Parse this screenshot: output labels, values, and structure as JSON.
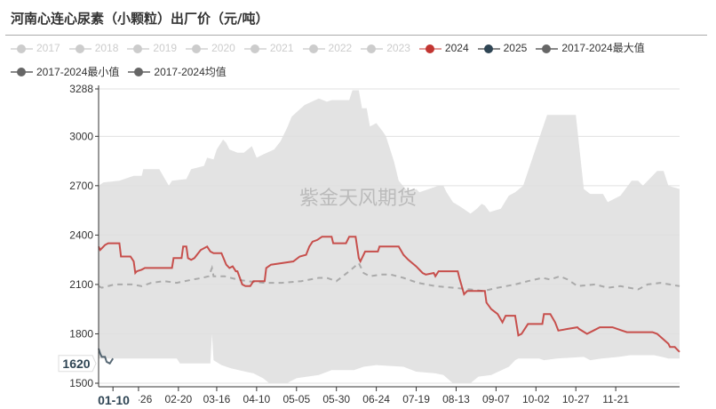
{
  "title": "河南心连心尿素（小颗粒）出厂价（元/吨）",
  "watermark": "紫金天风期货",
  "legend": [
    {
      "label": "2017",
      "color": "#cccccc",
      "active": false
    },
    {
      "label": "2018",
      "color": "#cccccc",
      "active": false
    },
    {
      "label": "2019",
      "color": "#cccccc",
      "active": false
    },
    {
      "label": "2020",
      "color": "#cccccc",
      "active": false
    },
    {
      "label": "2021",
      "color": "#cccccc",
      "active": false
    },
    {
      "label": "2022",
      "color": "#cccccc",
      "active": false
    },
    {
      "label": "2023",
      "color": "#cccccc",
      "active": false
    },
    {
      "label": "2024",
      "color": "#c23531",
      "active": true
    },
    {
      "label": "2025",
      "color": "#2f4554",
      "active": true
    },
    {
      "label": "2017-2024最大值",
      "color": "#666666",
      "active": true
    },
    {
      "label": "2017-2024最小值",
      "color": "#666666",
      "active": true
    },
    {
      "label": "2017-2024均值",
      "color": "#666666",
      "active": true
    }
  ],
  "chart_data": {
    "type": "line",
    "title": "河南心连心尿素（小颗粒）出厂价（元/吨）",
    "ylim": [
      1500,
      3288
    ],
    "yticks": [
      "3288",
      "3000",
      "2700",
      "2400",
      "2100",
      "1800",
      "1500"
    ],
    "xticks": [
      "01-10",
      "01-26",
      "02-20",
      "03-16",
      "04-10",
      "05-05",
      "05-30",
      "06-24",
      "07-19",
      "08-13",
      "09-07",
      "10-02",
      "10-27",
      "11-21"
    ],
    "grid": true,
    "legend_position": "top",
    "axis_pointer": {
      "x": "01-10",
      "y": "1620"
    },
    "band_color": "#e3e3e3",
    "series": [
      {
        "name": "2017-2024最大值",
        "color": "#e3e3e3",
        "points": [
          [
            "01-01",
            2700
          ],
          [
            "01-04",
            2720
          ],
          [
            "01-14",
            2730
          ],
          [
            "01-23",
            2760
          ],
          [
            "01-28",
            2760
          ],
          [
            "01-29",
            2800
          ],
          [
            "02-08",
            2800
          ],
          [
            "02-11",
            2750
          ],
          [
            "02-14",
            2700
          ],
          [
            "02-16",
            2730
          ],
          [
            "02-25",
            2740
          ],
          [
            "02-28",
            2800
          ],
          [
            "03-08",
            2820
          ],
          [
            "03-10",
            2870
          ],
          [
            "03-14",
            2860
          ],
          [
            "03-16",
            2920
          ],
          [
            "03-20",
            2980
          ],
          [
            "03-22",
            2960
          ],
          [
            "03-24",
            2920
          ],
          [
            "03-29",
            2900
          ],
          [
            "04-02",
            2900
          ],
          [
            "04-07",
            2940
          ],
          [
            "04-10",
            2870
          ],
          [
            "04-14",
            2890
          ],
          [
            "04-21",
            2920
          ],
          [
            "04-25",
            2970
          ],
          [
            "04-29",
            3050
          ],
          [
            "05-02",
            3120
          ],
          [
            "05-10",
            3190
          ],
          [
            "05-19",
            3230
          ],
          [
            "05-24",
            3210
          ],
          [
            "05-27",
            3220
          ],
          [
            "06-07",
            3220
          ],
          [
            "06-09",
            3280
          ],
          [
            "06-13",
            3280
          ],
          [
            "06-15",
            3170
          ],
          [
            "06-18",
            3170
          ],
          [
            "06-20",
            3060
          ],
          [
            "06-24",
            3080
          ],
          [
            "06-28",
            3030
          ],
          [
            "06-30",
            3000
          ],
          [
            "07-05",
            2850
          ],
          [
            "07-08",
            2730
          ],
          [
            "07-14",
            2660
          ],
          [
            "07-19",
            2680
          ],
          [
            "07-21",
            2660
          ],
          [
            "08-02",
            2700
          ],
          [
            "08-05",
            2700
          ],
          [
            "08-07",
            2660
          ],
          [
            "08-11",
            2600
          ],
          [
            "08-16",
            2570
          ],
          [
            "08-22",
            2530
          ],
          [
            "08-26",
            2560
          ],
          [
            "08-29",
            2590
          ],
          [
            "08-31",
            2580
          ],
          [
            "09-03",
            2540
          ],
          [
            "09-10",
            2560
          ],
          [
            "09-15",
            2640
          ],
          [
            "09-19",
            2660
          ],
          [
            "09-24",
            2700
          ],
          [
            "10-02",
            2930
          ],
          [
            "10-09",
            3130
          ],
          [
            "10-27",
            3130
          ],
          [
            "11-01",
            2680
          ],
          [
            "11-05",
            2650
          ],
          [
            "11-13",
            2650
          ],
          [
            "11-16",
            2600
          ],
          [
            "11-24",
            2640
          ],
          [
            "12-01",
            2730
          ],
          [
            "12-05",
            2730
          ],
          [
            "12-08",
            2700
          ],
          [
            "12-17",
            2790
          ],
          [
            "12-21",
            2790
          ],
          [
            "12-24",
            2700
          ],
          [
            "12-31",
            2680
          ]
        ]
      },
      {
        "name": "2017-2024最小值",
        "color": "#ffffff",
        "points": [
          [
            "01-01",
            1650
          ],
          [
            "02-19",
            1650
          ],
          [
            "02-21",
            1620
          ],
          [
            "03-12",
            1620
          ],
          [
            "03-13",
            1800
          ],
          [
            "03-14",
            1640
          ],
          [
            "03-19",
            1610
          ],
          [
            "03-25",
            1590
          ],
          [
            "04-03",
            1570
          ],
          [
            "04-08",
            1560
          ],
          [
            "04-14",
            1530
          ],
          [
            "04-18",
            1500
          ],
          [
            "04-29",
            1500
          ],
          [
            "05-05",
            1530
          ],
          [
            "05-19",
            1550
          ],
          [
            "05-27",
            1580
          ],
          [
            "06-10",
            1580
          ],
          [
            "06-16",
            1600
          ],
          [
            "06-24",
            1610
          ],
          [
            "07-11",
            1600
          ],
          [
            "07-19",
            1570
          ],
          [
            "07-31",
            1560
          ],
          [
            "08-05",
            1550
          ],
          [
            "08-11",
            1500
          ],
          [
            "08-22",
            1500
          ],
          [
            "08-27",
            1540
          ],
          [
            "09-04",
            1550
          ],
          [
            "09-15",
            1600
          ],
          [
            "09-19",
            1640
          ],
          [
            "09-21",
            1650
          ],
          [
            "10-04",
            1650
          ],
          [
            "10-07",
            1640
          ],
          [
            "10-15",
            1650
          ],
          [
            "11-01",
            1660
          ],
          [
            "11-05",
            1640
          ],
          [
            "11-12",
            1650
          ],
          [
            "11-23",
            1660
          ],
          [
            "11-30",
            1670
          ],
          [
            "12-15",
            1670
          ],
          [
            "12-20",
            1660
          ],
          [
            "12-24",
            1650
          ],
          [
            "12-31",
            1650
          ]
        ]
      },
      {
        "name": "2017-2024均值",
        "color": "#aaaaaa",
        "dashed": true,
        "points": [
          [
            "01-01",
            2090
          ],
          [
            "01-03",
            2080
          ],
          [
            "01-11",
            2100
          ],
          [
            "01-22",
            2100
          ],
          [
            "01-28",
            2090
          ],
          [
            "02-03",
            2110
          ],
          [
            "02-11",
            2120
          ],
          [
            "02-19",
            2110
          ],
          [
            "03-01",
            2130
          ],
          [
            "03-07",
            2140
          ],
          [
            "03-11",
            2150
          ],
          [
            "03-13",
            2200
          ],
          [
            "03-14",
            2150
          ],
          [
            "03-21",
            2150
          ],
          [
            "03-29",
            2130
          ],
          [
            "04-04",
            2120
          ],
          [
            "04-15",
            2110
          ],
          [
            "04-26",
            2110
          ],
          [
            "05-08",
            2120
          ],
          [
            "05-19",
            2140
          ],
          [
            "05-24",
            2140
          ],
          [
            "05-30",
            2120
          ],
          [
            "06-07",
            2180
          ],
          [
            "06-13",
            2230
          ],
          [
            "06-16",
            2170
          ],
          [
            "06-20",
            2150
          ],
          [
            "06-27",
            2160
          ],
          [
            "07-03",
            2160
          ],
          [
            "07-11",
            2140
          ],
          [
            "07-20",
            2110
          ],
          [
            "07-31",
            2090
          ],
          [
            "08-11",
            2080
          ],
          [
            "08-22",
            2070
          ],
          [
            "08-30",
            2060
          ],
          [
            "09-08",
            2080
          ],
          [
            "09-19",
            2100
          ],
          [
            "09-27",
            2120
          ],
          [
            "10-06",
            2140
          ],
          [
            "10-11",
            2130
          ],
          [
            "10-17",
            2150
          ],
          [
            "10-22",
            2130
          ],
          [
            "10-28",
            2090
          ],
          [
            "11-08",
            2100
          ],
          [
            "11-16",
            2080
          ],
          [
            "11-24",
            2090
          ],
          [
            "12-05",
            2070
          ],
          [
            "12-11",
            2100
          ],
          [
            "12-19",
            2110
          ],
          [
            "12-31",
            2090
          ]
        ]
      },
      {
        "name": "2024",
        "color": "#c23531",
        "points": [
          [
            "01-01",
            2330
          ],
          [
            "01-02",
            2310
          ],
          [
            "01-05",
            2340
          ],
          [
            "01-07",
            2350
          ],
          [
            "01-14",
            2350
          ],
          [
            "01-15",
            2270
          ],
          [
            "01-21",
            2270
          ],
          [
            "01-23",
            2240
          ],
          [
            "01-24",
            2170
          ],
          [
            "01-25",
            2180
          ],
          [
            "01-28",
            2190
          ],
          [
            "01-30",
            2200
          ],
          [
            "02-16",
            2200
          ],
          [
            "02-17",
            2260
          ],
          [
            "02-22",
            2260
          ],
          [
            "02-23",
            2330
          ],
          [
            "02-25",
            2330
          ],
          [
            "02-26",
            2260
          ],
          [
            "02-28",
            2250
          ],
          [
            "03-02",
            2260
          ],
          [
            "03-06",
            2310
          ],
          [
            "03-10",
            2330
          ],
          [
            "03-12",
            2300
          ],
          [
            "03-14",
            2290
          ],
          [
            "03-19",
            2290
          ],
          [
            "03-22",
            2220
          ],
          [
            "03-24",
            2200
          ],
          [
            "03-26",
            2210
          ],
          [
            "03-28",
            2180
          ],
          [
            "03-29",
            2180
          ],
          [
            "04-01",
            2100
          ],
          [
            "04-03",
            2090
          ],
          [
            "04-06",
            2090
          ],
          [
            "04-08",
            2120
          ],
          [
            "04-15",
            2120
          ],
          [
            "04-16",
            2200
          ],
          [
            "04-19",
            2220
          ],
          [
            "04-26",
            2230
          ],
          [
            "05-03",
            2240
          ],
          [
            "05-07",
            2270
          ],
          [
            "05-11",
            2280
          ],
          [
            "05-13",
            2330
          ],
          [
            "05-15",
            2360
          ],
          [
            "05-18",
            2370
          ],
          [
            "05-21",
            2390
          ],
          [
            "05-27",
            2390
          ],
          [
            "05-28",
            2350
          ],
          [
            "06-05",
            2350
          ],
          [
            "06-07",
            2390
          ],
          [
            "06-11",
            2390
          ],
          [
            "06-13",
            2260
          ],
          [
            "06-14",
            2240
          ],
          [
            "06-17",
            2300
          ],
          [
            "06-25",
            2300
          ],
          [
            "06-26",
            2330
          ],
          [
            "07-08",
            2330
          ],
          [
            "07-11",
            2280
          ],
          [
            "07-14",
            2250
          ],
          [
            "07-19",
            2210
          ],
          [
            "07-23",
            2170
          ],
          [
            "07-25",
            2160
          ],
          [
            "07-30",
            2170
          ],
          [
            "07-31",
            2150
          ],
          [
            "08-02",
            2180
          ],
          [
            "08-14",
            2180
          ],
          [
            "08-15",
            2140
          ],
          [
            "08-18",
            2040
          ],
          [
            "08-20",
            2060
          ],
          [
            "08-31",
            2060
          ],
          [
            "09-01",
            1990
          ],
          [
            "09-04",
            1950
          ],
          [
            "09-08",
            1920
          ],
          [
            "09-11",
            1870
          ],
          [
            "09-13",
            1910
          ],
          [
            "09-19",
            1910
          ],
          [
            "09-21",
            1790
          ],
          [
            "09-23",
            1800
          ],
          [
            "09-27",
            1860
          ],
          [
            "10-06",
            1860
          ],
          [
            "10-07",
            1920
          ],
          [
            "10-11",
            1920
          ],
          [
            "10-14",
            1870
          ],
          [
            "10-16",
            1820
          ],
          [
            "10-22",
            1830
          ],
          [
            "10-28",
            1840
          ],
          [
            "10-29",
            1830
          ],
          [
            "11-03",
            1800
          ],
          [
            "11-07",
            1820
          ],
          [
            "11-11",
            1840
          ],
          [
            "11-19",
            1840
          ],
          [
            "11-25",
            1820
          ],
          [
            "11-28",
            1810
          ],
          [
            "12-14",
            1810
          ],
          [
            "12-17",
            1800
          ],
          [
            "12-24",
            1740
          ],
          [
            "12-25",
            1720
          ],
          [
            "12-28",
            1720
          ],
          [
            "12-31",
            1690
          ]
        ]
      },
      {
        "name": "2025",
        "color": "#2f4554",
        "points": [
          [
            "01-01",
            1710
          ],
          [
            "01-02",
            1680
          ],
          [
            "01-03",
            1660
          ],
          [
            "01-05",
            1660
          ],
          [
            "01-06",
            1630
          ],
          [
            "01-08",
            1620
          ],
          [
            "01-10",
            1650
          ]
        ]
      }
    ]
  }
}
